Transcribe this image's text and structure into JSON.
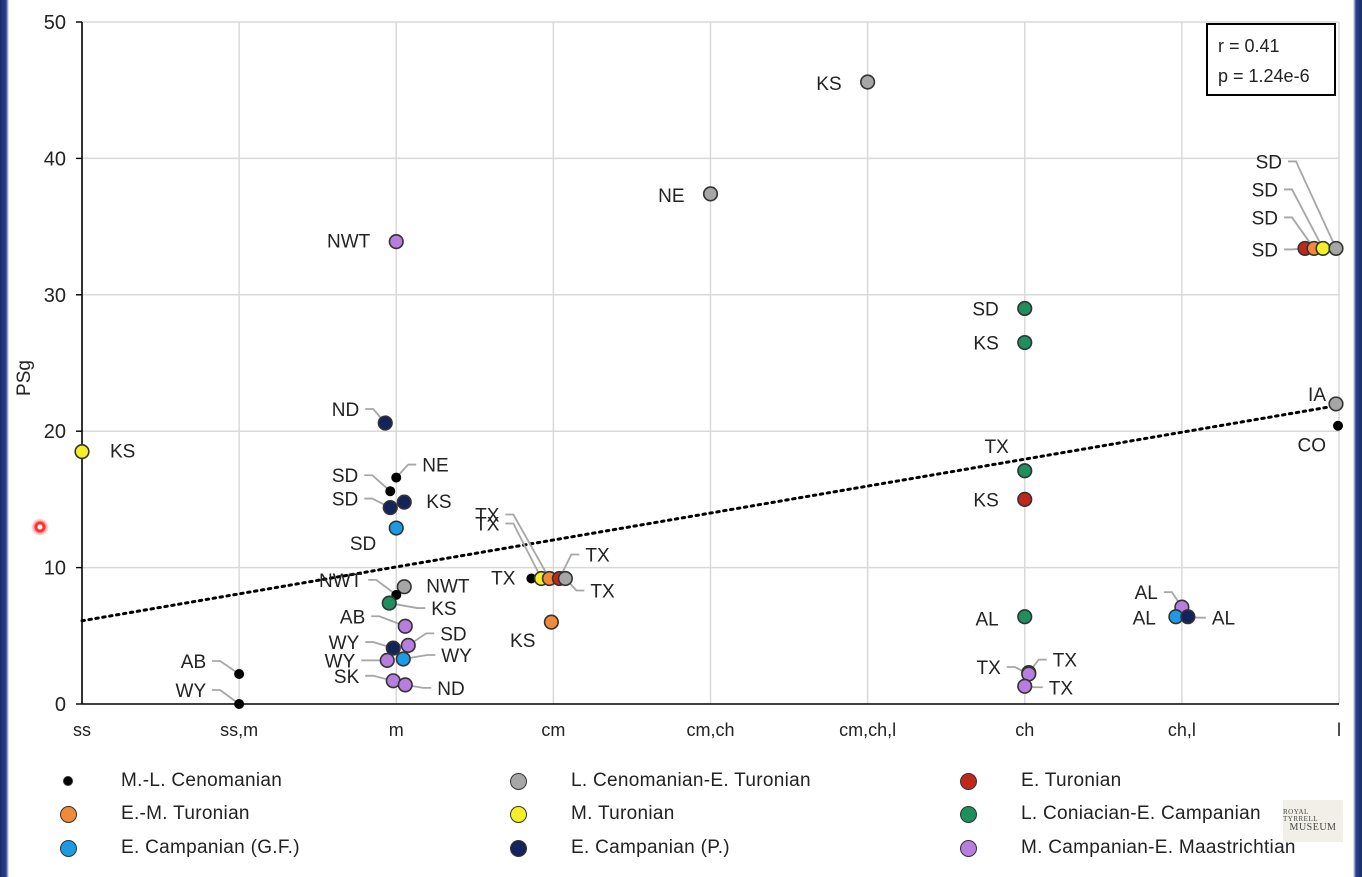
{
  "chart_data": {
    "type": "scatter",
    "title": "",
    "xlabel": "",
    "ylabel": "PSg",
    "categories": [
      "ss",
      "ss,m",
      "m",
      "cm",
      "cm,ch",
      "cm,ch,l",
      "ch",
      "ch,l",
      "l"
    ],
    "ylim": [
      0,
      50
    ],
    "yticks": [
      0,
      10,
      20,
      30,
      40,
      50
    ],
    "grid": true,
    "stats": {
      "r": "r = 0.41",
      "p": "p = 1.24e-6"
    },
    "trendline": {
      "style": "dotted",
      "start": {
        "x": "ss",
        "y": 6.1
      },
      "end": {
        "x": "l",
        "y": 21.9
      }
    },
    "colors": {
      "M.-L. Cenomanian": "#000000",
      "L. Cenomanian-E. Turonian": "#a6a6a6",
      "E. Turonian": "#c0281c",
      "E.-M. Turonian": "#ef8a3a",
      "M. Turonian": "#f4f025",
      "L. Coniacian-E. Campanian": "#1e8f5e",
      "E. Campanian (G.F.)": "#1c9be4",
      "E. Campanian (P.)": "#13245c",
      "M. Campanian-E. Maastrichtian": "#b77ee0"
    },
    "legend": [
      "M.-L. Cenomanian",
      "L. Cenomanian-E. Turonian",
      "E. Turonian",
      "E.-M. Turonian",
      "M. Turonian",
      "L. Coniacian-E. Campanian",
      "E. Campanian (G.F.)",
      "E. Campanian (P.)",
      "M. Campanian-E. Maastrichtian"
    ],
    "points": [
      {
        "x": "ss",
        "y": 18.5,
        "series": "M. Turonian",
        "label": "KS"
      },
      {
        "x": "ss,m",
        "y": 2.2,
        "series": "M.-L. Cenomanian",
        "label": "AB"
      },
      {
        "x": "ss,m",
        "y": 0.0,
        "series": "M.-L. Cenomanian",
        "label": "WY"
      },
      {
        "x": "m",
        "y": 33.9,
        "series": "M. Campanian-E. Maastrichtian",
        "label": "NWT"
      },
      {
        "x": "m",
        "y": 20.6,
        "series": "E. Campanian (P.)",
        "label": "ND"
      },
      {
        "x": "m",
        "y": 16.6,
        "series": "M.-L. Cenomanian",
        "label": "NE"
      },
      {
        "x": "m",
        "y": 15.6,
        "series": "M.-L. Cenomanian",
        "label": "SD"
      },
      {
        "x": "m",
        "y": 14.8,
        "series": "E. Campanian (P.)",
        "label": "KS"
      },
      {
        "x": "m",
        "y": 14.4,
        "series": "E. Campanian (P.)",
        "label": "SD"
      },
      {
        "x": "m",
        "y": 12.9,
        "series": "E. Campanian (G.F.)",
        "label": "SD"
      },
      {
        "x": "m",
        "y": 8.6,
        "series": "L. Cenomanian-E. Turonian",
        "label": "NWT"
      },
      {
        "x": "m",
        "y": 8.0,
        "series": "M.-L. Cenomanian",
        "label": "NWT"
      },
      {
        "x": "m",
        "y": 7.4,
        "series": "L. Coniacian-E. Campanian",
        "label": "KS"
      },
      {
        "x": "m",
        "y": 5.7,
        "series": "M. Campanian-E. Maastrichtian",
        "label": "AB"
      },
      {
        "x": "m",
        "y": 4.3,
        "series": "M. Campanian-E. Maastrichtian",
        "label": "SD"
      },
      {
        "x": "m",
        "y": 4.1,
        "series": "E. Campanian (P.)",
        "label": "WY"
      },
      {
        "x": "m",
        "y": 3.3,
        "series": "E. Campanian (G.F.)",
        "label": "WY"
      },
      {
        "x": "m",
        "y": 3.2,
        "series": "M. Campanian-E. Maastrichtian",
        "label": "WY"
      },
      {
        "x": "m",
        "y": 1.7,
        "series": "M. Campanian-E. Maastrichtian",
        "label": "SK"
      },
      {
        "x": "m",
        "y": 1.4,
        "series": "M. Campanian-E. Maastrichtian",
        "label": "ND"
      },
      {
        "x": "cm",
        "y": 9.2,
        "series": "M.-L. Cenomanian",
        "label": "TX"
      },
      {
        "x": "cm",
        "y": 9.2,
        "series": "M. Turonian",
        "label": "TX"
      },
      {
        "x": "cm",
        "y": 9.2,
        "series": "E.-M. Turonian",
        "label": "TX"
      },
      {
        "x": "cm",
        "y": 9.2,
        "series": "E. Turonian",
        "label": "TX"
      },
      {
        "x": "cm",
        "y": 9.2,
        "series": "L. Cenomanian-E. Turonian",
        "label": "TX"
      },
      {
        "x": "cm",
        "y": 6.0,
        "series": "E.-M. Turonian",
        "label": "KS"
      },
      {
        "x": "cm,ch",
        "y": 37.4,
        "series": "L. Cenomanian-E. Turonian",
        "label": "NE"
      },
      {
        "x": "cm,ch,l",
        "y": 45.6,
        "series": "L. Cenomanian-E. Turonian",
        "label": "KS"
      },
      {
        "x": "ch",
        "y": 29.0,
        "series": "L. Coniacian-E. Campanian",
        "label": "SD"
      },
      {
        "x": "ch",
        "y": 26.5,
        "series": "L. Coniacian-E. Campanian",
        "label": "KS"
      },
      {
        "x": "ch",
        "y": 17.1,
        "series": "L. Coniacian-E. Campanian",
        "label": "TX"
      },
      {
        "x": "ch",
        "y": 15.0,
        "series": "E. Turonian",
        "label": "KS"
      },
      {
        "x": "ch",
        "y": 6.4,
        "series": "L. Coniacian-E. Campanian",
        "label": "AL"
      },
      {
        "x": "ch",
        "y": 2.3,
        "series": "E. Campanian (P.)",
        "label": "TX"
      },
      {
        "x": "ch",
        "y": 2.2,
        "series": "M. Campanian-E. Maastrichtian",
        "label": "TX"
      },
      {
        "x": "ch",
        "y": 1.3,
        "series": "M. Campanian-E. Maastrichtian",
        "label": "TX"
      },
      {
        "x": "ch,l",
        "y": 7.1,
        "series": "M. Campanian-E. Maastrichtian",
        "label": "AL"
      },
      {
        "x": "ch,l",
        "y": 6.4,
        "series": "E. Campanian (G.F.)",
        "label": "AL"
      },
      {
        "x": "ch,l",
        "y": 6.4,
        "series": "E. Campanian (P.)",
        "label": "AL"
      },
      {
        "x": "l",
        "y": 33.4,
        "series": "E. Turonian",
        "label": "SD"
      },
      {
        "x": "l",
        "y": 33.4,
        "series": "E.-M. Turonian",
        "label": "SD"
      },
      {
        "x": "l",
        "y": 33.4,
        "series": "M. Turonian",
        "label": "SD"
      },
      {
        "x": "l",
        "y": 33.4,
        "series": "L. Cenomanian-E. Turonian",
        "label": "SD"
      },
      {
        "x": "l",
        "y": 22.0,
        "series": "L. Cenomanian-E. Turonian",
        "label": "IA"
      },
      {
        "x": "l",
        "y": 20.4,
        "series": "M.-L. Cenomanian",
        "label": "CO"
      }
    ]
  },
  "watermark": {
    "line1": "ROYAL TYRRELL",
    "line2": "MUSEUM"
  }
}
